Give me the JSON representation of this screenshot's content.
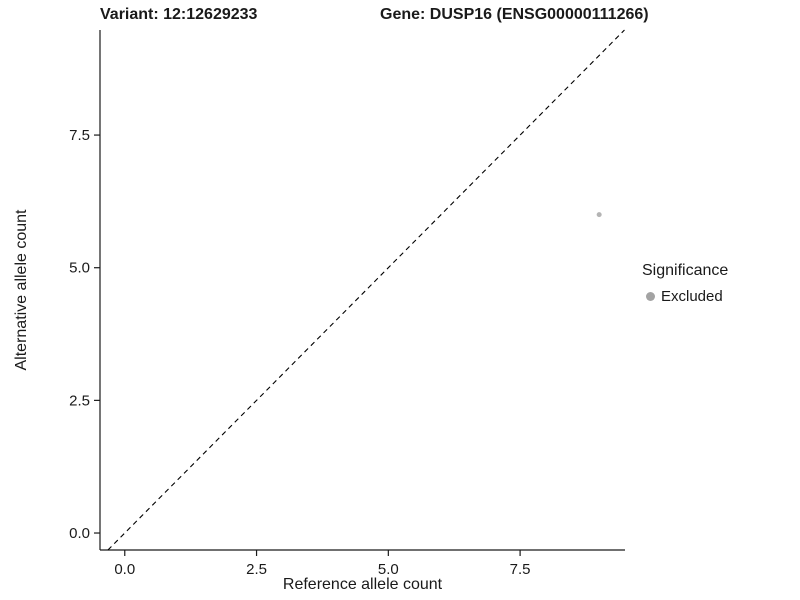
{
  "chart_data": {
    "type": "scatter",
    "title_left": "Variant: 12:12629233",
    "title_right": "Gene: DUSP16 (ENSG00000111266)",
    "xlabel": "Reference allele count",
    "ylabel": "Alternative allele count",
    "xlim": [
      -0.47,
      9.49
    ],
    "ylim": [
      -0.32,
      9.48
    ],
    "xticks": [
      0.0,
      2.5,
      5.0,
      7.5
    ],
    "xtick_labels": [
      "0.0",
      "2.5",
      "5.0",
      "7.5"
    ],
    "yticks": [
      0.0,
      2.5,
      5.0,
      7.5
    ],
    "ytick_labels": [
      "0.0",
      "2.5",
      "5.0",
      "7.5"
    ],
    "grid": false,
    "background": "#ffffff",
    "axis_color": "#1a1a1a",
    "text_color": "#1a1a1a",
    "reference_line": {
      "type": "identity",
      "equation": "y = x",
      "style": "dashed",
      "color": "#000000"
    },
    "series": [
      {
        "name": "Excluded",
        "color": "#b4b4b4",
        "point_radius": 2.5,
        "points": [
          {
            "x": 9,
            "y": 6
          }
        ]
      }
    ],
    "legend": {
      "title": "Significance",
      "position": "right",
      "items": [
        {
          "label": "Excluded",
          "color": "#a3a3a3",
          "marker": "circle"
        }
      ]
    }
  }
}
